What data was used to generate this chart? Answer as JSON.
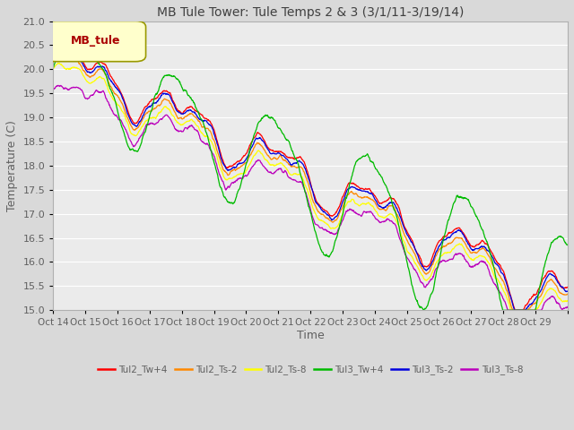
{
  "title": "MB Tule Tower: Tule Temps 2 & 3 (3/1/11-3/19/14)",
  "xlabel": "Time",
  "ylabel": "Temperature (C)",
  "ylim": [
    15.0,
    21.0
  ],
  "yticks": [
    15.0,
    15.5,
    16.0,
    16.5,
    17.0,
    17.5,
    18.0,
    18.5,
    19.0,
    19.5,
    20.0,
    20.5,
    21.0
  ],
  "xtick_labels": [
    "Oct 14",
    "Oct 15",
    "Oct 16",
    "Oct 17",
    "Oct 18",
    "Oct 19",
    "Oct 20",
    "Oct 21",
    "Oct 22",
    "Oct 23",
    "Oct 24",
    "Oct 25",
    "Oct 26",
    "Oct 27",
    "Oct 28",
    "Oct 29"
  ],
  "legend_label": "MB_tule",
  "series_labels": [
    "Tul2_Tw+4",
    "Tul2_Ts-2",
    "Tul2_Ts-8",
    "Tul3_Tw+4",
    "Tul3_Ts-2",
    "Tul3_Ts-8"
  ],
  "series_colors": [
    "#ff0000",
    "#ff8800",
    "#ffff00",
    "#00bb00",
    "#0000dd",
    "#bb00bb"
  ],
  "background_color": "#d9d9d9",
  "plot_bg_color": "#ebebeb",
  "title_color": "#404040",
  "axis_color": "#606060",
  "grid_color": "#ffffff",
  "figwidth": 6.4,
  "figheight": 4.8,
  "dpi": 100
}
